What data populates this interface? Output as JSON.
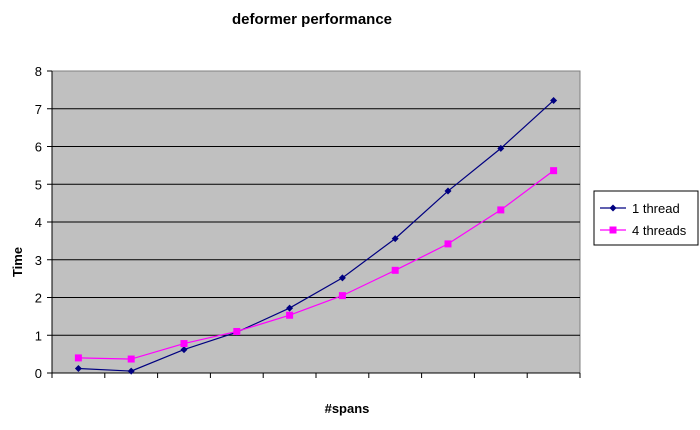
{
  "chart_data": {
    "type": "line",
    "title": "deformer performance",
    "xlabel": "#spans",
    "ylabel": "Time",
    "ylim": [
      0,
      8
    ],
    "yticks": [
      0,
      1,
      2,
      3,
      4,
      5,
      6,
      7,
      8
    ],
    "grid": true,
    "legend_position": "right",
    "plot_background": "#c0c0c0",
    "x_points": 10,
    "series": [
      {
        "name": "1 thread",
        "color": "#000080",
        "marker": "diamond",
        "values": [
          0.12,
          0.05,
          0.62,
          1.08,
          1.72,
          2.52,
          3.56,
          4.82,
          5.95,
          7.22
        ]
      },
      {
        "name": "4 threads",
        "color": "#ff00ff",
        "marker": "square",
        "values": [
          0.4,
          0.37,
          0.78,
          1.1,
          1.53,
          2.05,
          2.72,
          3.42,
          4.32,
          5.36
        ]
      }
    ]
  }
}
